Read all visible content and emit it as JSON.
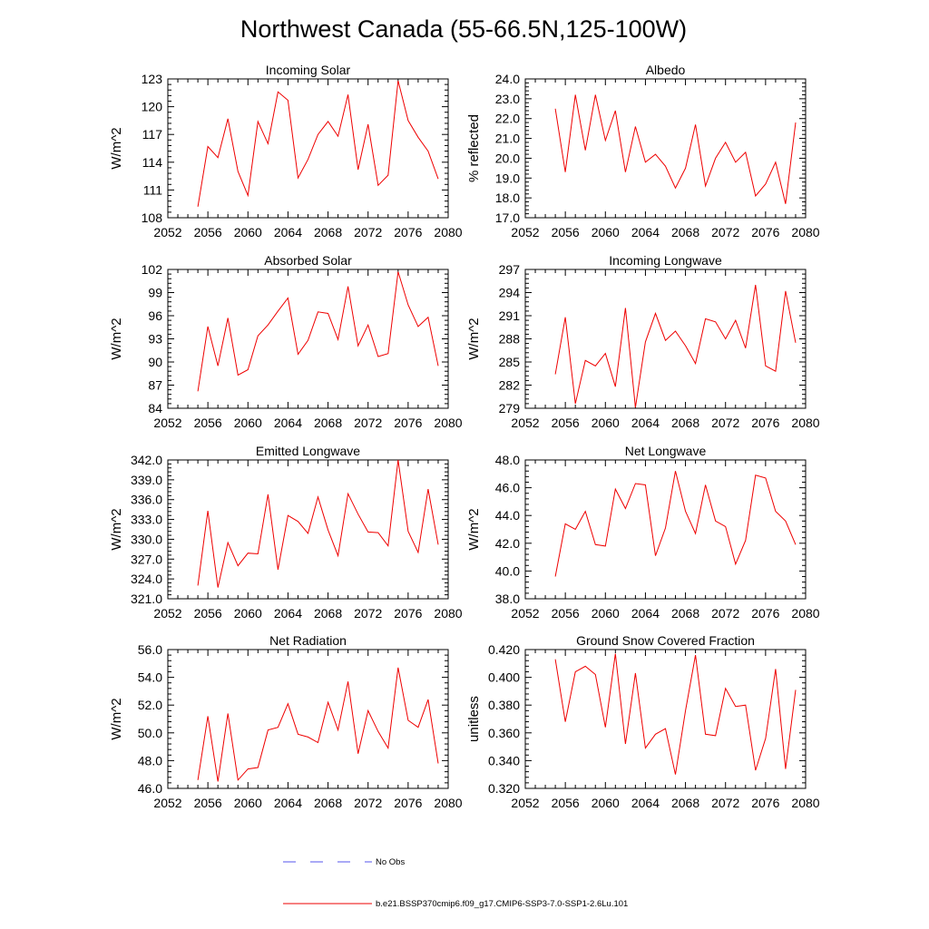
{
  "figure": {
    "title": "Northwest Canada (55-66.5N,125-100W)"
  },
  "legend": {
    "entries": [
      {
        "label": "No Obs",
        "style": "dashed",
        "color": "#5555ee"
      },
      {
        "label": "b.e21.BSSP370cmip6.f09_g17.CMIP6-SSP3-7.0-SSP1-2.6Lu.101",
        "style": "solid",
        "color": "#ee0000"
      }
    ]
  },
  "colors": {
    "series": "#ee0000",
    "no_obs": "#5555ee",
    "axis": "#000000"
  },
  "chart_data": [
    {
      "type": "line",
      "title": "Incoming Solar",
      "xlabel": "",
      "ylabel": "W/m^2",
      "xlim": [
        2052,
        2080
      ],
      "ylim": [
        108,
        123
      ],
      "xticks": [
        2052,
        2056,
        2060,
        2064,
        2068,
        2072,
        2076,
        2080
      ],
      "xtick_labels": [
        "2052",
        "2056",
        "2060",
        "2064",
        "2068",
        "2072",
        "2076",
        "2080"
      ],
      "yticks": [
        108,
        111,
        114,
        117,
        120,
        123
      ],
      "ytick_labels": [
        "108",
        "111",
        "114",
        "117",
        "120",
        "123"
      ],
      "x": [
        2055,
        2056,
        2057,
        2058,
        2059,
        2060,
        2061,
        2062,
        2063,
        2064,
        2065,
        2066,
        2067,
        2068,
        2069,
        2070,
        2071,
        2072,
        2073,
        2074,
        2075,
        2076,
        2077,
        2078,
        2079
      ],
      "series": [
        {
          "values": [
            109.2,
            115.7,
            114.5,
            118.7,
            113.0,
            110.4,
            118.4,
            116.0,
            121.6,
            120.7,
            112.3,
            114.3,
            117.0,
            118.4,
            116.8,
            121.3,
            113.2,
            118.1,
            111.5,
            112.6,
            122.8,
            118.5,
            116.7,
            115.2,
            112.2
          ]
        }
      ]
    },
    {
      "type": "line",
      "title": "Albedo",
      "xlabel": "",
      "ylabel": "% reflected",
      "xlim": [
        2052,
        2080
      ],
      "ylim": [
        17.0,
        24.0
      ],
      "xticks": [
        2052,
        2056,
        2060,
        2064,
        2068,
        2072,
        2076,
        2080
      ],
      "xtick_labels": [
        "2052",
        "2056",
        "2060",
        "2064",
        "2068",
        "2072",
        "2076",
        "2080"
      ],
      "yticks": [
        17,
        18,
        19,
        20,
        21,
        22,
        23,
        24
      ],
      "ytick_labels": [
        "17.0",
        "18.0",
        "19.0",
        "20.0",
        "21.0",
        "22.0",
        "23.0",
        "24.0"
      ],
      "x": [
        2055,
        2056,
        2057,
        2058,
        2059,
        2060,
        2061,
        2062,
        2063,
        2064,
        2065,
        2066,
        2067,
        2068,
        2069,
        2070,
        2071,
        2072,
        2073,
        2074,
        2075,
        2076,
        2077,
        2078,
        2079
      ],
      "series": [
        {
          "values": [
            22.5,
            19.3,
            23.2,
            20.4,
            23.2,
            20.9,
            22.4,
            19.3,
            21.6,
            19.8,
            20.2,
            19.6,
            18.5,
            19.5,
            21.7,
            18.6,
            20.0,
            20.8,
            19.8,
            20.3,
            18.1,
            18.7,
            19.8,
            17.7,
            21.8
          ]
        }
      ]
    },
    {
      "type": "line",
      "title": "Absorbed Solar",
      "xlabel": "",
      "ylabel": "W/m^2",
      "xlim": [
        2052,
        2080
      ],
      "ylim": [
        84,
        102
      ],
      "xticks": [
        2052,
        2056,
        2060,
        2064,
        2068,
        2072,
        2076,
        2080
      ],
      "xtick_labels": [
        "2052",
        "2056",
        "2060",
        "2064",
        "2068",
        "2072",
        "2076",
        "2080"
      ],
      "yticks": [
        84,
        87,
        90,
        93,
        96,
        99,
        102
      ],
      "ytick_labels": [
        "84",
        "87",
        "90",
        "93",
        "96",
        "99",
        "102"
      ],
      "x": [
        2055,
        2056,
        2057,
        2058,
        2059,
        2060,
        2061,
        2062,
        2063,
        2064,
        2065,
        2066,
        2067,
        2068,
        2069,
        2070,
        2071,
        2072,
        2073,
        2074,
        2075,
        2076,
        2077,
        2078,
        2079
      ],
      "series": [
        {
          "values": [
            86.2,
            94.6,
            89.5,
            95.7,
            88.3,
            89.0,
            93.4,
            94.8,
            96.6,
            98.3,
            91.0,
            92.8,
            96.5,
            96.3,
            92.9,
            99.8,
            92.1,
            94.8,
            90.7,
            91.1,
            101.7,
            97.4,
            94.6,
            95.8,
            89.5
          ]
        }
      ]
    },
    {
      "type": "line",
      "title": "Incoming Longwave",
      "xlabel": "",
      "ylabel": "W/m^2",
      "xlim": [
        2052,
        2080
      ],
      "ylim": [
        279,
        297
      ],
      "xticks": [
        2052,
        2056,
        2060,
        2064,
        2068,
        2072,
        2076,
        2080
      ],
      "xtick_labels": [
        "2052",
        "2056",
        "2060",
        "2064",
        "2068",
        "2072",
        "2076",
        "2080"
      ],
      "yticks": [
        279,
        282,
        285,
        288,
        291,
        294,
        297
      ],
      "ytick_labels": [
        "279",
        "282",
        "285",
        "288",
        "291",
        "294",
        "297"
      ],
      "x": [
        2055,
        2056,
        2057,
        2058,
        2059,
        2060,
        2061,
        2062,
        2063,
        2064,
        2065,
        2066,
        2067,
        2068,
        2069,
        2070,
        2071,
        2072,
        2073,
        2074,
        2075,
        2076,
        2077,
        2078,
        2079
      ],
      "series": [
        {
          "values": [
            283.4,
            290.8,
            279.6,
            285.2,
            284.5,
            286.1,
            281.8,
            292.0,
            279.1,
            287.6,
            291.3,
            287.8,
            289.0,
            287.1,
            284.8,
            290.6,
            290.2,
            288.0,
            290.4,
            286.8,
            295.0,
            284.5,
            283.8,
            294.2,
            287.5
          ]
        }
      ]
    },
    {
      "type": "line",
      "title": "Emitted Longwave",
      "xlabel": "",
      "ylabel": "W/m^2",
      "xlim": [
        2052,
        2080
      ],
      "ylim": [
        321,
        342
      ],
      "xticks": [
        2052,
        2056,
        2060,
        2064,
        2068,
        2072,
        2076,
        2080
      ],
      "xtick_labels": [
        "2052",
        "2056",
        "2060",
        "2064",
        "2068",
        "2072",
        "2076",
        "2080"
      ],
      "yticks": [
        321,
        324,
        327,
        330,
        333,
        336,
        339,
        342
      ],
      "ytick_labels": [
        "321.0",
        "324.0",
        "327.0",
        "330.0",
        "333.0",
        "336.0",
        "339.0",
        "342.0"
      ],
      "x": [
        2055,
        2056,
        2057,
        2058,
        2059,
        2060,
        2061,
        2062,
        2063,
        2064,
        2065,
        2066,
        2067,
        2068,
        2069,
        2070,
        2071,
        2072,
        2073,
        2074,
        2075,
        2076,
        2077,
        2078,
        2079
      ],
      "series": [
        {
          "values": [
            323.0,
            334.3,
            322.7,
            329.5,
            326.0,
            327.9,
            327.8,
            336.8,
            325.4,
            333.6,
            332.7,
            330.9,
            336.4,
            331.4,
            327.5,
            336.9,
            333.8,
            331.1,
            331.0,
            329.0,
            342.0,
            331.2,
            328.0,
            337.6,
            329.2
          ]
        }
      ]
    },
    {
      "type": "line",
      "title": "Net Longwave",
      "xlabel": "",
      "ylabel": "W/m^2",
      "xlim": [
        2052,
        2080
      ],
      "ylim": [
        38.0,
        48.0
      ],
      "xticks": [
        2052,
        2056,
        2060,
        2064,
        2068,
        2072,
        2076,
        2080
      ],
      "xtick_labels": [
        "2052",
        "2056",
        "2060",
        "2064",
        "2068",
        "2072",
        "2076",
        "2080"
      ],
      "yticks": [
        38,
        40,
        42,
        44,
        46,
        48
      ],
      "ytick_labels": [
        "38.0",
        "40.0",
        "42.0",
        "44.0",
        "46.0",
        "48.0"
      ],
      "x": [
        2055,
        2056,
        2057,
        2058,
        2059,
        2060,
        2061,
        2062,
        2063,
        2064,
        2065,
        2066,
        2067,
        2068,
        2069,
        2070,
        2071,
        2072,
        2073,
        2074,
        2075,
        2076,
        2077,
        2078,
        2079
      ],
      "series": [
        {
          "values": [
            39.6,
            43.4,
            43.0,
            44.3,
            41.9,
            41.8,
            45.9,
            44.5,
            46.3,
            46.2,
            41.1,
            43.1,
            47.2,
            44.3,
            42.7,
            46.2,
            43.6,
            43.2,
            40.5,
            42.2,
            46.9,
            46.7,
            44.3,
            43.6,
            41.9
          ]
        }
      ]
    },
    {
      "type": "line",
      "title": "Net Radiation",
      "xlabel": "",
      "ylabel": "W/m^2",
      "xlim": [
        2052,
        2080
      ],
      "ylim": [
        46.0,
        56.0
      ],
      "xticks": [
        2052,
        2056,
        2060,
        2064,
        2068,
        2072,
        2076,
        2080
      ],
      "xtick_labels": [
        "2052",
        "2056",
        "2060",
        "2064",
        "2068",
        "2072",
        "2076",
        "2080"
      ],
      "yticks": [
        46,
        48,
        50,
        52,
        54,
        56
      ],
      "ytick_labels": [
        "46.0",
        "48.0",
        "50.0",
        "52.0",
        "54.0",
        "56.0"
      ],
      "x": [
        2055,
        2056,
        2057,
        2058,
        2059,
        2060,
        2061,
        2062,
        2063,
        2064,
        2065,
        2066,
        2067,
        2068,
        2069,
        2070,
        2071,
        2072,
        2073,
        2074,
        2075,
        2076,
        2077,
        2078,
        2079
      ],
      "series": [
        {
          "values": [
            46.6,
            51.2,
            46.5,
            51.4,
            46.6,
            47.4,
            47.5,
            50.2,
            50.4,
            52.1,
            49.9,
            49.7,
            49.3,
            52.2,
            50.2,
            53.7,
            48.5,
            51.6,
            50.1,
            48.9,
            54.7,
            50.9,
            50.4,
            52.4,
            47.8
          ]
        }
      ]
    },
    {
      "type": "line",
      "title": "Ground Snow Covered Fraction",
      "xlabel": "",
      "ylabel": "unitless",
      "xlim": [
        2052,
        2080
      ],
      "ylim": [
        0.32,
        0.42
      ],
      "xticks": [
        2052,
        2056,
        2060,
        2064,
        2068,
        2072,
        2076,
        2080
      ],
      "xtick_labels": [
        "2052",
        "2056",
        "2060",
        "2064",
        "2068",
        "2072",
        "2076",
        "2080"
      ],
      "yticks": [
        0.32,
        0.34,
        0.36,
        0.38,
        0.4,
        0.42
      ],
      "ytick_labels": [
        "0.320",
        "0.340",
        "0.360",
        "0.380",
        "0.400",
        "0.420"
      ],
      "x": [
        2055,
        2056,
        2057,
        2058,
        2059,
        2060,
        2061,
        2062,
        2063,
        2064,
        2065,
        2066,
        2067,
        2068,
        2069,
        2070,
        2071,
        2072,
        2073,
        2074,
        2075,
        2076,
        2077,
        2078,
        2079
      ],
      "series": [
        {
          "values": [
            0.413,
            0.368,
            0.404,
            0.408,
            0.402,
            0.364,
            0.417,
            0.352,
            0.403,
            0.349,
            0.359,
            0.363,
            0.33,
            0.376,
            0.416,
            0.359,
            0.358,
            0.392,
            0.379,
            0.38,
            0.333,
            0.356,
            0.406,
            0.334,
            0.391
          ]
        }
      ]
    }
  ]
}
